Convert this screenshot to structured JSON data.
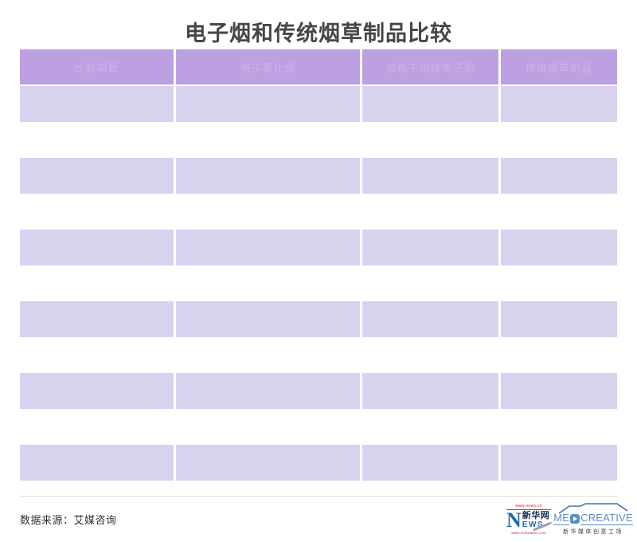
{
  "title": "电子烟和传统烟草制品比较",
  "chart_data": {
    "type": "table",
    "title": "电子烟和传统烟草制品比较",
    "columns": [
      "比较项目",
      "电子雾化烟",
      "加热不燃烧电子烟",
      "传统烟草制品"
    ],
    "rows": [
      [
        "",
        "",
        "",
        ""
      ],
      [
        "",
        "",
        "",
        ""
      ],
      [
        "",
        "",
        "",
        ""
      ],
      [
        "",
        "",
        "",
        ""
      ],
      [
        "",
        "",
        "",
        ""
      ],
      [
        "",
        "",
        "",
        ""
      ],
      [
        "",
        "",
        "",
        ""
      ],
      [
        "",
        "",
        "",
        ""
      ],
      [
        "",
        "",
        "",
        ""
      ],
      [
        "",
        "",
        "",
        ""
      ],
      [
        "",
        "",
        "",
        ""
      ]
    ],
    "layout_hints": {
      "striped_row_indices": [
        0,
        2,
        4,
        6,
        8,
        10
      ],
      "grid": "off"
    }
  },
  "table": {
    "headers": [
      "比较项目",
      "电子雾化烟",
      "加热不燃烧电子烟",
      "传统烟草制品"
    ],
    "body_rows": [
      [
        "",
        "",
        "",
        ""
      ],
      [
        "",
        "",
        "",
        ""
      ],
      [
        "",
        "",
        "",
        ""
      ],
      [
        "",
        "",
        "",
        ""
      ],
      [
        "",
        "",
        "",
        ""
      ],
      [
        "",
        "",
        "",
        ""
      ],
      [
        "",
        "",
        "",
        ""
      ],
      [
        "",
        "",
        "",
        ""
      ],
      [
        "",
        "",
        "",
        ""
      ],
      [
        "",
        "",
        "",
        ""
      ],
      [
        "",
        "",
        "",
        ""
      ]
    ]
  },
  "footer": {
    "source": "数据来源：艾媒咨询"
  },
  "logos": {
    "xinhua": {
      "top_url": "www.news.cn",
      "initial": "N",
      "brand": "新华网",
      "ews": "EWS",
      "bottom_url": "www.xinhuanet.com"
    },
    "medcreative": {
      "prefix": "ME",
      "suffix": "CREATIVE",
      "subtitle": "新华媒体创意工场"
    }
  },
  "colors": {
    "header_bg": "#bda0e2",
    "header_text": "#cbb3e8",
    "row_bg": "#d9d2ef",
    "title_text": "#464646",
    "source_text": "#2f2f2f",
    "divider": "#dcdcdc",
    "xinhua_blue": "#2268b0",
    "xinhua_red": "#c9281c",
    "med_blue": "#5b8ec6"
  }
}
